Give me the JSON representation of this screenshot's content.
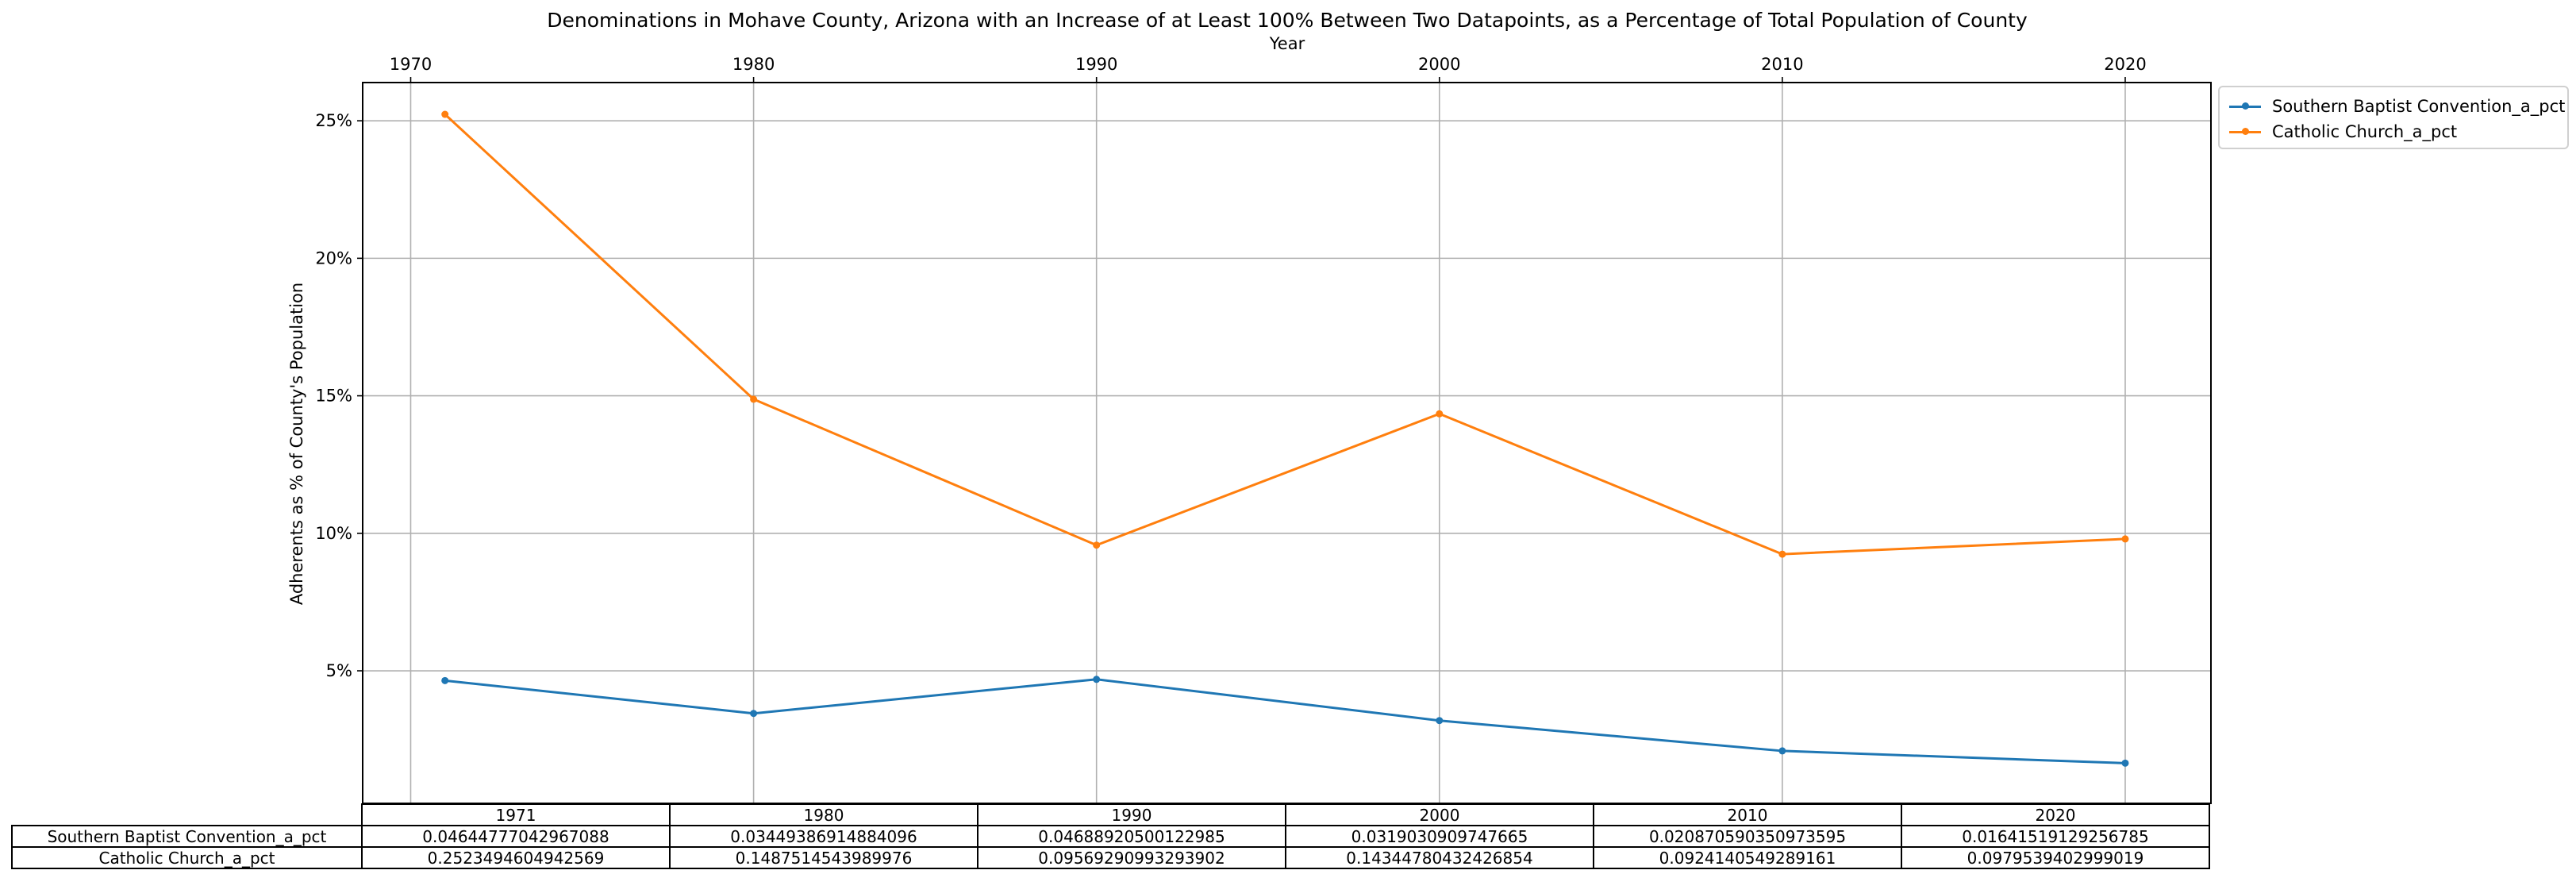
{
  "chart_data": {
    "type": "line",
    "title": "Denominations in Mohave County, Arizona with an Increase of at Least 100% Between Two Datapoints, as a Percentage of Total Population of County",
    "xlabel": "Year",
    "ylabel": "Adherents as % of County's Population",
    "x": [
      1971,
      1980,
      1990,
      2000,
      2010,
      2020
    ],
    "x_ticks": [
      "1970",
      "1980",
      "1990",
      "2000",
      "2010",
      "2020"
    ],
    "y_ticks": [
      "5%",
      "10%",
      "15%",
      "20%",
      "25%"
    ],
    "xlim": [
      1968.6,
      2022.5
    ],
    "ylim": [
      0.0018,
      0.2639
    ],
    "grid": true,
    "legend_position": "outside-top-right",
    "series": [
      {
        "name": "Southern Baptist Convention_a_pct",
        "color": "#1f77b4",
        "values": [
          0.04644777042967088,
          0.03449386914884096,
          0.04688920500122998,
          0.0319030909747665,
          0.020870590350973595,
          0.01641519129256785
        ]
      },
      {
        "name": "Catholic Church_a_pct",
        "color": "#ff7f0e",
        "values": [
          0.2523494604942569,
          0.1487514543989976,
          0.09569290993293902,
          0.14344780432426854,
          0.0924140549289161,
          0.0979539402999019
        ]
      }
    ],
    "table": {
      "columns": [
        "1971",
        "1980",
        "1990",
        "2000",
        "2010",
        "2020"
      ],
      "rows": [
        {
          "label": "Southern Baptist Convention_a_pct",
          "cells": [
            "0.04644777042967088",
            "0.03449386914884096",
            "0.04688920500122985",
            "0.0319030909747665",
            "0.020870590350973595",
            "0.01641519129256785"
          ]
        },
        {
          "label": "Catholic Church_a_pct",
          "cells": [
            "0.2523494604942569",
            "0.1487514543989976",
            "0.09569290993293902",
            "0.14344780432426854",
            "0.0924140549289161",
            "0.0979539402999019"
          ]
        }
      ]
    }
  }
}
